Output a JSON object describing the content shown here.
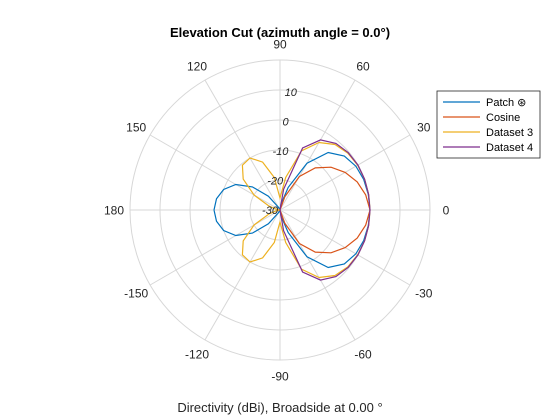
{
  "chart_data": {
    "type": "line",
    "polar": true,
    "title": "Elevation Cut (azimuth angle = 0.0°)",
    "xlabel": "Directivity (dBi), Broadside at 0.00 °",
    "angle_ticks": [
      "0",
      "30",
      "60",
      "90",
      "120",
      "150",
      "180",
      "-150",
      "-120",
      "-90",
      "-60",
      "-30"
    ],
    "r_ticks": [
      "-30",
      "-20",
      "-10",
      "0",
      "10"
    ],
    "rlim": [
      -30,
      20
    ],
    "grid": true,
    "legend": {
      "position": "top-right"
    },
    "series": [
      {
        "name": "Patch ⊛",
        "color": "#0072BD",
        "angles": [
          -180,
          -170,
          -160,
          -150,
          -140,
          -130,
          -120,
          -110,
          -100,
          -90,
          -80,
          -70,
          -60,
          -50,
          -40,
          -30,
          -20,
          -10,
          0,
          10,
          20,
          30,
          40,
          50,
          60,
          70,
          80,
          90,
          100,
          110,
          120,
          130,
          140,
          150,
          160,
          170,
          180
        ],
        "values": [
          -8,
          -8.5,
          -10,
          -13,
          -18,
          -24,
          -29,
          -30,
          -30,
          -30,
          -28,
          -22,
          -12,
          -5,
          -2,
          -0.8,
          -0.3,
          -0.1,
          0,
          -0.1,
          -0.3,
          -0.8,
          -2,
          -5,
          -12,
          -22,
          -28,
          -30,
          -30,
          -30,
          -29,
          -24,
          -18,
          -13,
          -10,
          -8.5,
          -8
        ]
      },
      {
        "name": "Cosine",
        "color": "#D95319",
        "angles": [
          -180,
          -170,
          -160,
          -150,
          -140,
          -130,
          -120,
          -110,
          -100,
          -95,
          -90,
          -85,
          -80,
          -70,
          -60,
          -50,
          -40,
          -30,
          -20,
          -10,
          0,
          10,
          20,
          30,
          40,
          50,
          60,
          70,
          80,
          85,
          90,
          95,
          100,
          110,
          120,
          130,
          140,
          150,
          160,
          170,
          180
        ],
        "values": [
          -30,
          -30,
          -30,
          -30,
          -30,
          -30,
          -30,
          -30,
          -30,
          -30,
          -30,
          -30,
          -30,
          -25.3,
          -17.1,
          -11.7,
          -7.8,
          -4.9,
          -2.6,
          -1.0,
          0,
          -1.0,
          -2.6,
          -4.9,
          -7.8,
          -11.7,
          -17.1,
          -25.3,
          -30,
          -30,
          -30,
          -30,
          -30,
          -30,
          -30,
          -30,
          -30,
          -30,
          -30,
          -30,
          -30
        ]
      },
      {
        "name": "Dataset 3",
        "color": "#EDB120",
        "angles": [
          -180,
          -170,
          -160,
          -150,
          -140,
          -130,
          -120,
          -110,
          -100,
          -90,
          -80,
          -70,
          -60,
          -50,
          -40,
          -30,
          -20,
          -10,
          0,
          10,
          20,
          30,
          40,
          50,
          60,
          70,
          80,
          90,
          100,
          110,
          120,
          130,
          140,
          150,
          160,
          170,
          180
        ],
        "values": [
          -30,
          -29,
          -26,
          -20,
          -14,
          -10.5,
          -10,
          -13,
          -19,
          -26,
          -19,
          -9,
          -4,
          -1.5,
          -0.5,
          -0.1,
          0,
          0,
          0,
          0,
          0,
          -0.1,
          -0.5,
          -1.5,
          -4,
          -9,
          -19,
          -26,
          -19,
          -13,
          -10,
          -10.5,
          -14,
          -20,
          -26,
          -29,
          -30
        ]
      },
      {
        "name": "Dataset 4",
        "color": "#7E2F8E",
        "angles": [
          -180,
          -170,
          -160,
          -150,
          -140,
          -130,
          -120,
          -110,
          -100,
          -90,
          -80,
          -70,
          -60,
          -50,
          -40,
          -30,
          -20,
          -10,
          0,
          10,
          20,
          30,
          40,
          50,
          60,
          70,
          80,
          90,
          100,
          110,
          120,
          130,
          140,
          150,
          160,
          170,
          180
        ],
        "values": [
          -30,
          -30,
          -30,
          -30,
          -30,
          -30,
          -30,
          -30,
          -30,
          -30,
          -23,
          -8,
          -3,
          -1,
          -0.3,
          0,
          0,
          0,
          0,
          0,
          0,
          0,
          -0.3,
          -1,
          -3,
          -8,
          -23,
          -30,
          -30,
          -30,
          -30,
          -30,
          -30,
          -30,
          -30,
          -30,
          -30
        ]
      }
    ]
  }
}
